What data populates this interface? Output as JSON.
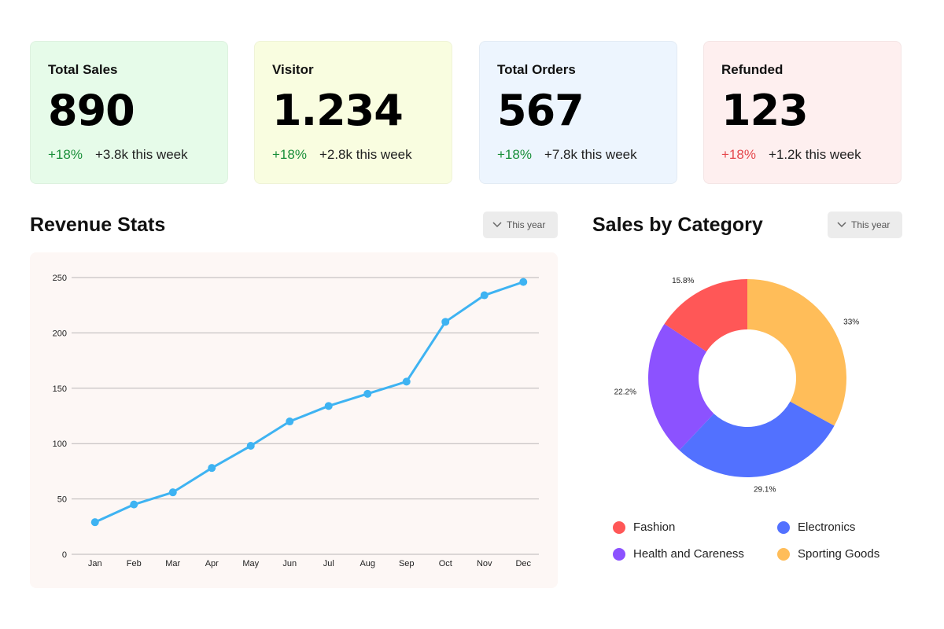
{
  "cards": [
    {
      "title": "Total Sales",
      "value": "890",
      "pct": "+18%",
      "trend": "up",
      "week": "+3.8k this week",
      "bg": "#e6fbe9"
    },
    {
      "title": "Visitor",
      "value": "1.234",
      "pct": "+18%",
      "trend": "up",
      "week": "+2.8k this week",
      "bg": "#f9fde0"
    },
    {
      "title": "Total Orders",
      "value": "567",
      "pct": "+18%",
      "trend": "up",
      "week": "+7.8k this week",
      "bg": "#edf5fe"
    },
    {
      "title": "Refunded",
      "value": "123",
      "pct": "+18%",
      "trend": "down",
      "week": "+1.2k this week",
      "bg": "#feefef"
    }
  ],
  "revenue": {
    "title": "Revenue Stats",
    "filter_label": "This year"
  },
  "category": {
    "title": "Sales by Category",
    "filter_label": "This year"
  },
  "icons": {
    "dropdown": "chevron-down-icon"
  },
  "colors": {
    "line": "#3eb3f2",
    "gain": "#1a8f3a",
    "loss": "#e5484d"
  },
  "chart_data": [
    {
      "type": "line",
      "title": "",
      "categories": [
        "Jan",
        "Feb",
        "Mar",
        "Apr",
        "May",
        "Jun",
        "Jul",
        "Aug",
        "Sep",
        "Oct",
        "Nov",
        "Dec"
      ],
      "values": [
        29,
        45,
        56,
        78,
        98,
        120,
        134,
        145,
        156,
        210,
        234,
        246
      ],
      "ylim": [
        0,
        250
      ],
      "yticks": [
        0,
        50,
        100,
        150,
        200,
        250
      ],
      "grid": true
    },
    {
      "type": "pie",
      "donut": true,
      "title": "",
      "slices": [
        {
          "name": "Sporting Goods",
          "value": 33,
          "label": "33%",
          "color": "#ffbd59"
        },
        {
          "name": "Electronics",
          "value": 29.1,
          "label": "29.1%",
          "color": "#5271ff"
        },
        {
          "name": "Health and Careness",
          "value": 22.2,
          "label": "22.2%",
          "color": "#8c52ff"
        },
        {
          "name": "Fashion",
          "value": 15.8,
          "label": "15.8%",
          "color": "#ff5757"
        }
      ],
      "legend": [
        {
          "name": "Fashion",
          "color": "#ff5757"
        },
        {
          "name": "Electronics",
          "color": "#5271ff"
        },
        {
          "name": "Health and Careness",
          "color": "#8c52ff"
        },
        {
          "name": "Sporting Goods",
          "color": "#ffbd59"
        }
      ]
    }
  ]
}
